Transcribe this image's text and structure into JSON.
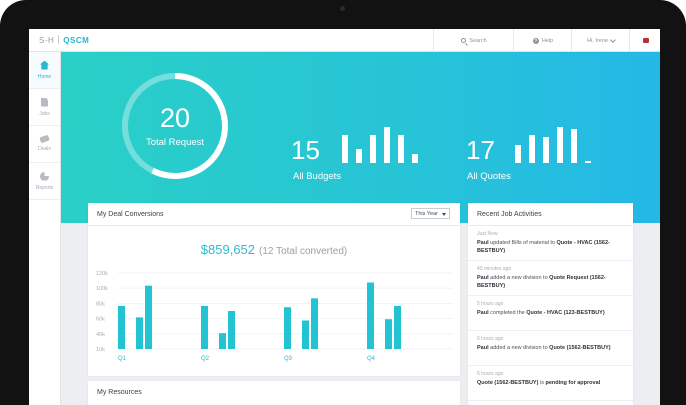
{
  "brand": {
    "prefix": "S-H",
    "name": "QSCM"
  },
  "topbar": {
    "search": "Search",
    "help": "Help",
    "user": "Hi, Irene"
  },
  "sidebar": {
    "items": [
      {
        "label": "Home",
        "active": true,
        "icon": "home-icon"
      },
      {
        "label": "Jobs",
        "active": false,
        "icon": "document-icon"
      },
      {
        "label": "Deals",
        "active": false,
        "icon": "handshake-icon"
      },
      {
        "label": "Reports",
        "active": false,
        "icon": "pie-chart-icon"
      }
    ]
  },
  "hero": {
    "total": {
      "value": "20",
      "label": "Total Request"
    },
    "budgets": {
      "value": "15",
      "label": "All Budgets",
      "bars": [
        28,
        14,
        28,
        36,
        28,
        9
      ]
    },
    "quotes": {
      "value": "17",
      "label": "All Quotes",
      "bars": [
        18,
        28,
        26,
        36,
        34,
        2
      ]
    }
  },
  "deal": {
    "title": "My Deal Conversions",
    "period": "This Year",
    "amount": "$859,652",
    "converted": "(12 Total converted)"
  },
  "chart_data": {
    "type": "bar",
    "x_labels": [
      "Q1",
      "Q2",
      "Q3",
      "Q4"
    ],
    "yticks": [
      "120k",
      "100k",
      "80k",
      "60k",
      "40k",
      "10k"
    ],
    "values": [
      68,
      50,
      100,
      68,
      25,
      60,
      66,
      45,
      80,
      105,
      47,
      68
    ],
    "bar_quarter_index": [
      0,
      0,
      0,
      1,
      1,
      1,
      2,
      2,
      2,
      3,
      3,
      3
    ],
    "color": "#22c3d3"
  },
  "activities": {
    "title": "Recent Job Activities",
    "items": [
      {
        "time": "Just Now",
        "pre": "",
        "who": "Paul",
        "mid": " updated Bills of material to ",
        "target": "Quote - HVAC (1562-BESTBUY)",
        "post": ""
      },
      {
        "time": "40 minutes ago",
        "pre": "",
        "who": "Paul",
        "mid": " added a new division to ",
        "target": "Quote Request (1562-BESTBUY)",
        "post": ""
      },
      {
        "time": "5 hours ago",
        "pre": "",
        "who": "Paul",
        "mid": " completed the ",
        "target": "Quote - HVAC (123-BESTBUY)",
        "post": ""
      },
      {
        "time": "6 hours ago",
        "pre": "",
        "who": "Paul",
        "mid": " added a new division to ",
        "target": "Quote (1562-BESTBUY)",
        "post": ""
      },
      {
        "time": "6 hours ago",
        "pre": "",
        "who": "Quote (1562-BESTBUY)",
        "mid": " is ",
        "target": "pending for approval",
        "post": ""
      }
    ]
  },
  "resources": {
    "title": "My Resources"
  },
  "colors": {
    "accent": "#2bb5cf",
    "hero_start": "#2ad0c6",
    "hero_end": "#24b8e6"
  }
}
